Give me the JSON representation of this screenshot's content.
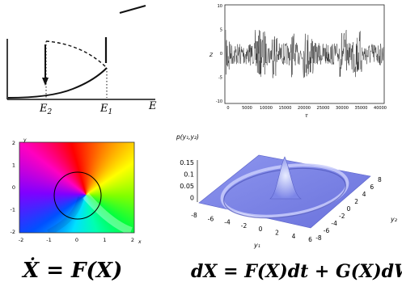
{
  "bifurcation": {
    "e2_label": "E",
    "e2_sub": "2",
    "e1_label": "E",
    "e1_sub": "1",
    "axis_label": "E"
  },
  "timeseries": {
    "ylabel": "Z",
    "xlabel": "τ",
    "y_ticks": [
      "10",
      "5",
      "0",
      "-5",
      "-10"
    ],
    "x_ticks": [
      "0",
      "5000",
      "10000",
      "15000",
      "20000",
      "25000",
      "30000",
      "35000",
      "40000"
    ]
  },
  "phase": {
    "x_axis_label": "x",
    "y_axis_label": "y",
    "x_ticks": [
      "-2",
      "-1",
      "0",
      "1",
      "2"
    ],
    "y_ticks": [
      "2",
      "1",
      "0",
      "-1",
      "-2"
    ]
  },
  "surface": {
    "zlabel": "p(y₁,y₂)",
    "z_ticks": [
      "0.15",
      "0.1",
      "0.05",
      "0"
    ],
    "y1_label": "y₁",
    "y1_ticks": [
      "-8",
      "-6",
      "-4",
      "-2",
      "0",
      "2",
      "4",
      "6"
    ],
    "y2_label": "y₂",
    "y2_ticks": [
      "8",
      "6",
      "4",
      "2",
      "0",
      "-2",
      "-4",
      "-6",
      "-8"
    ]
  },
  "equations": {
    "left": "Ẋ = F(X)",
    "right": "dX = F(X)dt + G(X)dW"
  }
}
